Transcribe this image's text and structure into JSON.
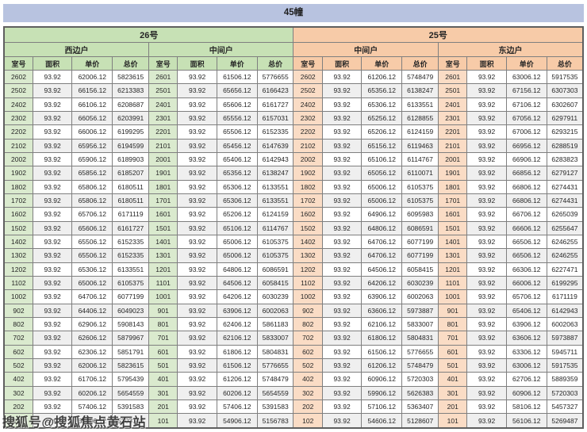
{
  "page_title": "45幢",
  "watermark": "搜狐号@搜狐焦点黄石站",
  "colors": {
    "title_bar": "#b8c3e0",
    "green_header": "#c7e1b5",
    "green_cell": "#daeace",
    "peach_header": "#f7cba8",
    "peach_cell": "#fadcc5",
    "row_alt": "#efefef",
    "grid_border": "#7f7f7f"
  },
  "table": {
    "buildings": [
      {
        "label": "26号",
        "unit_types": [
          {
            "label": "西边户"
          },
          {
            "label": "中间户"
          }
        ]
      },
      {
        "label": "25号",
        "unit_types": [
          {
            "label": "中间户"
          },
          {
            "label": "东边户"
          }
        ]
      }
    ],
    "column_headers": [
      "室号",
      "面积",
      "单价",
      "总价"
    ],
    "rows": [
      [
        [
          "2602",
          "93.92",
          "62006.12",
          "5823615"
        ],
        [
          "2601",
          "93.92",
          "61506.12",
          "5776655"
        ],
        [
          "2602",
          "93.92",
          "61206.12",
          "5748479"
        ],
        [
          "2601",
          "93.92",
          "63006.12",
          "5917535"
        ]
      ],
      [
        [
          "2502",
          "93.92",
          "66156.12",
          "6213383"
        ],
        [
          "2501",
          "93.92",
          "65656.12",
          "6166423"
        ],
        [
          "2502",
          "93.92",
          "65356.12",
          "6138247"
        ],
        [
          "2501",
          "93.92",
          "67156.12",
          "6307303"
        ]
      ],
      [
        [
          "2402",
          "93.92",
          "66106.12",
          "6208687"
        ],
        [
          "2401",
          "93.92",
          "65606.12",
          "6161727"
        ],
        [
          "2402",
          "93.92",
          "65306.12",
          "6133551"
        ],
        [
          "2401",
          "93.92",
          "67106.12",
          "6302607"
        ]
      ],
      [
        [
          "2302",
          "93.92",
          "66056.12",
          "6203991"
        ],
        [
          "2301",
          "93.92",
          "65556.12",
          "6157031"
        ],
        [
          "2302",
          "93.92",
          "65256.12",
          "6128855"
        ],
        [
          "2301",
          "93.92",
          "67056.12",
          "6297911"
        ]
      ],
      [
        [
          "2202",
          "93.92",
          "66006.12",
          "6199295"
        ],
        [
          "2201",
          "93.92",
          "65506.12",
          "6152335"
        ],
        [
          "2202",
          "93.92",
          "65206.12",
          "6124159"
        ],
        [
          "2201",
          "93.92",
          "67006.12",
          "6293215"
        ]
      ],
      [
        [
          "2102",
          "93.92",
          "65956.12",
          "6194599"
        ],
        [
          "2101",
          "93.92",
          "65456.12",
          "6147639"
        ],
        [
          "2102",
          "93.92",
          "65156.12",
          "6119463"
        ],
        [
          "2101",
          "93.92",
          "66956.12",
          "6288519"
        ]
      ],
      [
        [
          "2002",
          "93.92",
          "65906.12",
          "6189903"
        ],
        [
          "2001",
          "93.92",
          "65406.12",
          "6142943"
        ],
        [
          "2002",
          "93.92",
          "65106.12",
          "6114767"
        ],
        [
          "2001",
          "93.92",
          "66906.12",
          "6283823"
        ]
      ],
      [
        [
          "1902",
          "93.92",
          "65856.12",
          "6185207"
        ],
        [
          "1901",
          "93.92",
          "65356.12",
          "6138247"
        ],
        [
          "1902",
          "93.92",
          "65056.12",
          "6110071"
        ],
        [
          "1901",
          "93.92",
          "66856.12",
          "6279127"
        ]
      ],
      [
        [
          "1802",
          "93.92",
          "65806.12",
          "6180511"
        ],
        [
          "1801",
          "93.92",
          "65306.12",
          "6133551"
        ],
        [
          "1802",
          "93.92",
          "65006.12",
          "6105375"
        ],
        [
          "1801",
          "93.92",
          "66806.12",
          "6274431"
        ]
      ],
      [
        [
          "1702",
          "93.92",
          "65806.12",
          "6180511"
        ],
        [
          "1701",
          "93.92",
          "65306.12",
          "6133551"
        ],
        [
          "1702",
          "93.92",
          "65006.12",
          "6105375"
        ],
        [
          "1701",
          "93.92",
          "66806.12",
          "6274431"
        ]
      ],
      [
        [
          "1602",
          "93.92",
          "65706.12",
          "6171119"
        ],
        [
          "1601",
          "93.92",
          "65206.12",
          "6124159"
        ],
        [
          "1602",
          "93.92",
          "64906.12",
          "6095983"
        ],
        [
          "1601",
          "93.92",
          "66706.12",
          "6265039"
        ]
      ],
      [
        [
          "1502",
          "93.92",
          "65606.12",
          "6161727"
        ],
        [
          "1501",
          "93.92",
          "65106.12",
          "6114767"
        ],
        [
          "1502",
          "93.92",
          "64806.12",
          "6086591"
        ],
        [
          "1501",
          "93.92",
          "66606.12",
          "6255647"
        ]
      ],
      [
        [
          "1402",
          "93.92",
          "65506.12",
          "6152335"
        ],
        [
          "1401",
          "93.92",
          "65006.12",
          "6105375"
        ],
        [
          "1402",
          "93.92",
          "64706.12",
          "6077199"
        ],
        [
          "1401",
          "93.92",
          "66506.12",
          "6246255"
        ]
      ],
      [
        [
          "1302",
          "93.92",
          "65506.12",
          "6152335"
        ],
        [
          "1301",
          "93.92",
          "65006.12",
          "6105375"
        ],
        [
          "1302",
          "93.92",
          "64706.12",
          "6077199"
        ],
        [
          "1301",
          "93.92",
          "66506.12",
          "6246255"
        ]
      ],
      [
        [
          "1202",
          "93.92",
          "65306.12",
          "6133551"
        ],
        [
          "1201",
          "93.92",
          "64806.12",
          "6086591"
        ],
        [
          "1202",
          "93.92",
          "64506.12",
          "6058415"
        ],
        [
          "1201",
          "93.92",
          "66306.12",
          "6227471"
        ]
      ],
      [
        [
          "1102",
          "93.92",
          "65006.12",
          "6105375"
        ],
        [
          "1101",
          "93.92",
          "64506.12",
          "6058415"
        ],
        [
          "1102",
          "93.92",
          "64206.12",
          "6030239"
        ],
        [
          "1101",
          "93.92",
          "66006.12",
          "6199295"
        ]
      ],
      [
        [
          "1002",
          "93.92",
          "64706.12",
          "6077199"
        ],
        [
          "1001",
          "93.92",
          "64206.12",
          "6030239"
        ],
        [
          "1002",
          "93.92",
          "63906.12",
          "6002063"
        ],
        [
          "1001",
          "93.92",
          "65706.12",
          "6171119"
        ]
      ],
      [
        [
          "902",
          "93.92",
          "64406.12",
          "6049023"
        ],
        [
          "901",
          "93.92",
          "63906.12",
          "6002063"
        ],
        [
          "902",
          "93.92",
          "63606.12",
          "5973887"
        ],
        [
          "901",
          "93.92",
          "65406.12",
          "6142943"
        ]
      ],
      [
        [
          "802",
          "93.92",
          "62906.12",
          "5908143"
        ],
        [
          "801",
          "93.92",
          "62406.12",
          "5861183"
        ],
        [
          "802",
          "93.92",
          "62106.12",
          "5833007"
        ],
        [
          "801",
          "93.92",
          "63906.12",
          "6002063"
        ]
      ],
      [
        [
          "702",
          "93.92",
          "62606.12",
          "5879967"
        ],
        [
          "701",
          "93.92",
          "62106.12",
          "5833007"
        ],
        [
          "702",
          "93.92",
          "61806.12",
          "5804831"
        ],
        [
          "701",
          "93.92",
          "63606.12",
          "5973887"
        ]
      ],
      [
        [
          "602",
          "93.92",
          "62306.12",
          "5851791"
        ],
        [
          "601",
          "93.92",
          "61806.12",
          "5804831"
        ],
        [
          "602",
          "93.92",
          "61506.12",
          "5776655"
        ],
        [
          "601",
          "93.92",
          "63306.12",
          "5945711"
        ]
      ],
      [
        [
          "502",
          "93.92",
          "62006.12",
          "5823615"
        ],
        [
          "501",
          "93.92",
          "61506.12",
          "5776655"
        ],
        [
          "502",
          "93.92",
          "61206.12",
          "5748479"
        ],
        [
          "501",
          "93.92",
          "63006.12",
          "5917535"
        ]
      ],
      [
        [
          "402",
          "93.92",
          "61706.12",
          "5795439"
        ],
        [
          "401",
          "93.92",
          "61206.12",
          "5748479"
        ],
        [
          "402",
          "93.92",
          "60906.12",
          "5720303"
        ],
        [
          "401",
          "93.92",
          "62706.12",
          "5889359"
        ]
      ],
      [
        [
          "302",
          "93.92",
          "60206.12",
          "5654559"
        ],
        [
          "301",
          "93.92",
          "60206.12",
          "5654559"
        ],
        [
          "302",
          "93.92",
          "59906.12",
          "5626383"
        ],
        [
          "301",
          "93.92",
          "60906.12",
          "5720303"
        ]
      ],
      [
        [
          "202",
          "93.92",
          "57406.12",
          "5391583"
        ],
        [
          "201",
          "93.92",
          "57406.12",
          "5391583"
        ],
        [
          "202",
          "93.92",
          "57106.12",
          "5363407"
        ],
        [
          "201",
          "93.92",
          "58106.12",
          "5457327"
        ]
      ],
      [
        [
          "102",
          "93.92",
          "55406.12",
          "5203743"
        ],
        [
          "101",
          "93.92",
          "54906.12",
          "5156783"
        ],
        [
          "102",
          "93.92",
          "54606.12",
          "5128607"
        ],
        [
          "101",
          "93.92",
          "56106.12",
          "5269487"
        ]
      ]
    ]
  }
}
